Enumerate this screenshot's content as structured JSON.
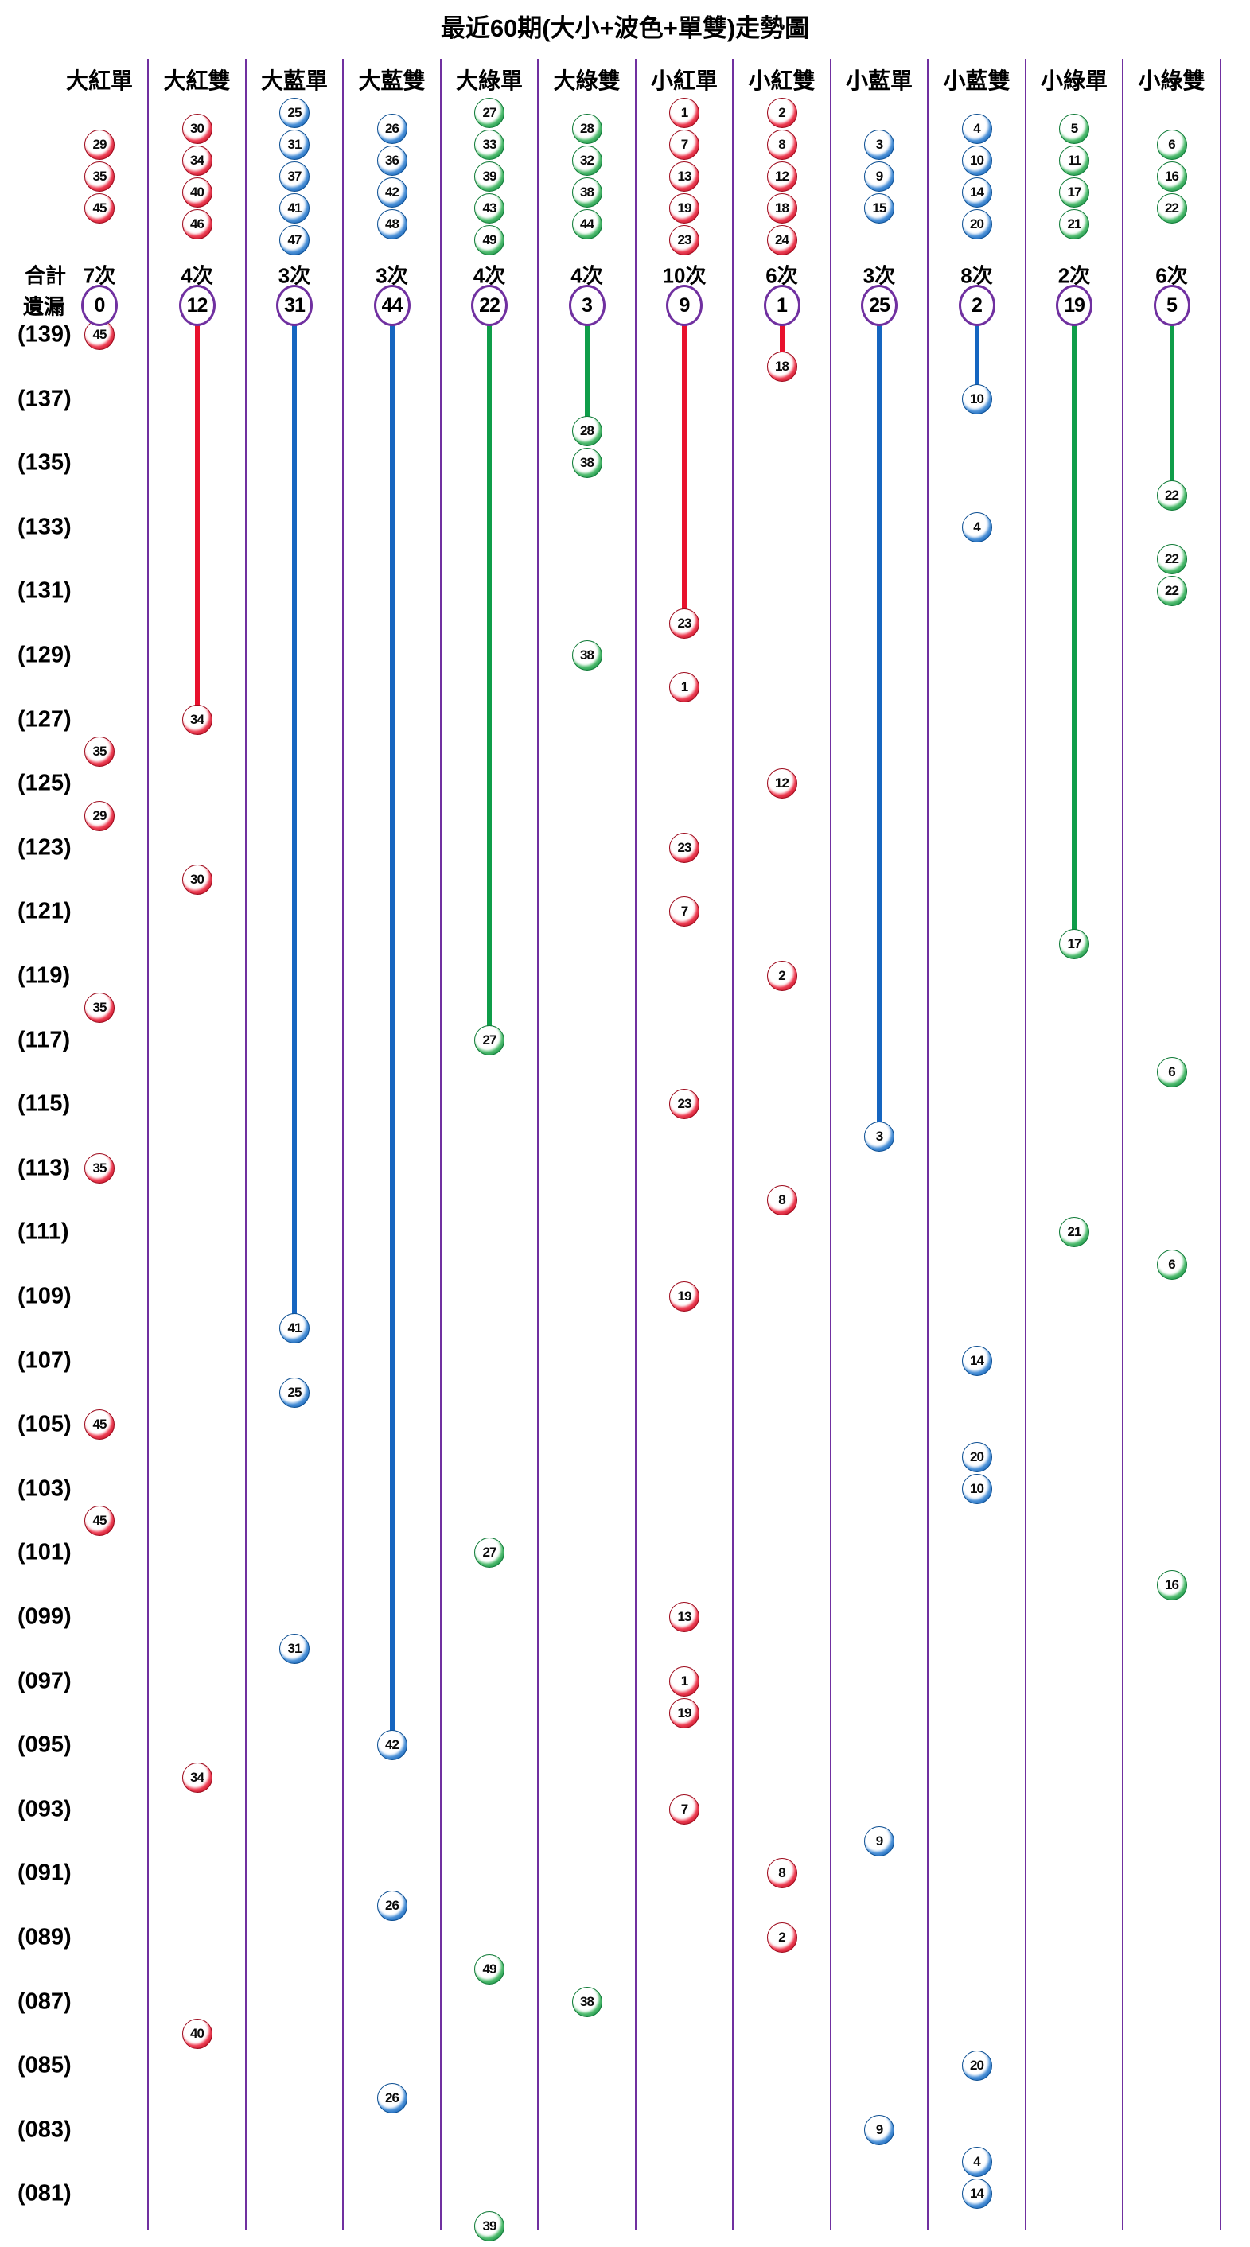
{
  "title": "最近60期(大小+波色+單雙)走勢圖",
  "legend": {
    "total_label": "合計",
    "miss_label": "遺漏"
  },
  "colors": {
    "red": "#e8112d",
    "blue": "#1565c0",
    "green": "#0f9d49",
    "purple": "#7030a0"
  },
  "period_labels": [
    "(139)",
    "(137)",
    "(135)",
    "(133)",
    "(131)",
    "(129)",
    "(127)",
    "(125)",
    "(123)",
    "(121)",
    "(119)",
    "(117)",
    "(115)",
    "(113)",
    "(111)",
    "(109)",
    "(107)",
    "(105)",
    "(103)",
    "(101)",
    "(099)",
    "(097)",
    "(095)",
    "(093)",
    "(091)",
    "(089)",
    "(087)",
    "(085)",
    "(083)",
    "(081)"
  ],
  "columns": [
    {
      "label": "大紅單",
      "group": "red",
      "top_balls": [
        29,
        35,
        45
      ],
      "total": "7次",
      "miss": 0,
      "events": [
        [
          139,
          45
        ],
        [
          126,
          35
        ],
        [
          124,
          29
        ],
        [
          118,
          35
        ],
        [
          113,
          35
        ],
        [
          105,
          45
        ],
        [
          102,
          45
        ]
      ]
    },
    {
      "label": "大紅雙",
      "group": "red",
      "top_balls": [
        30,
        34,
        40,
        46
      ],
      "total": "4次",
      "miss": 12,
      "events": [
        [
          127,
          34
        ],
        [
          122,
          30
        ],
        [
          94,
          34
        ],
        [
          86,
          40
        ]
      ]
    },
    {
      "label": "大藍單",
      "group": "blue",
      "top_balls": [
        25,
        31,
        37,
        41,
        47
      ],
      "total": "3次",
      "miss": 31,
      "events": [
        [
          108,
          41
        ],
        [
          106,
          25
        ],
        [
          98,
          31
        ]
      ]
    },
    {
      "label": "大藍雙",
      "group": "blue",
      "top_balls": [
        26,
        36,
        42,
        48
      ],
      "total": "3次",
      "miss": 44,
      "events": [
        [
          95,
          42
        ],
        [
          90,
          26
        ],
        [
          84,
          26
        ]
      ]
    },
    {
      "label": "大綠單",
      "group": "green",
      "top_balls": [
        27,
        33,
        39,
        43,
        49
      ],
      "total": "4次",
      "miss": 22,
      "events": [
        [
          117,
          27
        ],
        [
          101,
          27
        ],
        [
          88,
          49
        ],
        [
          80,
          39
        ]
      ]
    },
    {
      "label": "大綠雙",
      "group": "green",
      "top_balls": [
        28,
        32,
        38,
        44
      ],
      "total": "4次",
      "miss": 3,
      "events": [
        [
          136,
          28
        ],
        [
          135,
          38
        ],
        [
          129,
          38
        ],
        [
          87,
          38
        ]
      ]
    },
    {
      "label": "小紅單",
      "group": "red",
      "top_balls": [
        1,
        7,
        13,
        19,
        23
      ],
      "total": "10次",
      "miss": 9,
      "events": [
        [
          130,
          23
        ],
        [
          128,
          1
        ],
        [
          123,
          23
        ],
        [
          121,
          7
        ],
        [
          115,
          23
        ],
        [
          109,
          19
        ],
        [
          99,
          13
        ],
        [
          97,
          1
        ],
        [
          96,
          19
        ],
        [
          93,
          7
        ]
      ]
    },
    {
      "label": "小紅雙",
      "group": "red",
      "top_balls": [
        2,
        8,
        12,
        18,
        24
      ],
      "total": "6次",
      "miss": 1,
      "events": [
        [
          138,
          18
        ],
        [
          125,
          12
        ],
        [
          119,
          2
        ],
        [
          112,
          8
        ],
        [
          91,
          8
        ],
        [
          89,
          2
        ]
      ]
    },
    {
      "label": "小藍單",
      "group": "blue",
      "top_balls": [
        3,
        9,
        15
      ],
      "total": "3次",
      "miss": 25,
      "events": [
        [
          114,
          3
        ],
        [
          92,
          9
        ],
        [
          83,
          9
        ]
      ]
    },
    {
      "label": "小藍雙",
      "group": "blue",
      "top_balls": [
        4,
        10,
        14,
        20
      ],
      "total": "8次",
      "miss": 2,
      "events": [
        [
          137,
          10
        ],
        [
          133,
          4
        ],
        [
          107,
          14
        ],
        [
          104,
          20
        ],
        [
          103,
          10
        ],
        [
          85,
          20
        ],
        [
          82,
          4
        ],
        [
          81,
          14
        ]
      ]
    },
    {
      "label": "小綠單",
      "group": "green",
      "top_balls": [
        5,
        11,
        17,
        21
      ],
      "total": "2次",
      "miss": 19,
      "events": [
        [
          120,
          17
        ],
        [
          111,
          21
        ]
      ]
    },
    {
      "label": "小綠雙",
      "group": "green",
      "top_balls": [
        6,
        16,
        22
      ],
      "total": "6次",
      "miss": 5,
      "events": [
        [
          134,
          22
        ],
        [
          132,
          22
        ],
        [
          131,
          22
        ],
        [
          116,
          6
        ],
        [
          110,
          6
        ],
        [
          100,
          16
        ]
      ]
    }
  ],
  "chart_data": {
    "type": "scatter",
    "title": "最近60期(大小+波色+單雙)走勢圖",
    "x_categories": [
      "大紅單",
      "大紅雙",
      "大藍單",
      "大藍雙",
      "大綠單",
      "大綠雙",
      "小紅單",
      "小紅雙",
      "小藍單",
      "小藍雙",
      "小綠單",
      "小綠雙"
    ],
    "y_axis": "期號 (period), 139 at top descending to 80 at bottom, labels every 2 periods",
    "y_tick_labels": [
      "(139)",
      "(137)",
      "(135)",
      "(133)",
      "(131)",
      "(129)",
      "(127)",
      "(125)",
      "(123)",
      "(121)",
      "(119)",
      "(117)",
      "(115)",
      "(113)",
      "(111)",
      "(109)",
      "(107)",
      "(105)",
      "(103)",
      "(101)",
      "(099)",
      "(097)",
      "(095)",
      "(093)",
      "(091)",
      "(089)",
      "(087)",
      "(085)",
      "(083)",
      "(081)"
    ],
    "totals_per_category": [
      7,
      4,
      3,
      3,
      4,
      4,
      10,
      6,
      3,
      8,
      2,
      6
    ],
    "miss_per_category": [
      0,
      12,
      31,
      44,
      22,
      3,
      9,
      1,
      25,
      2,
      19,
      5
    ],
    "category_number_pools": [
      [
        29,
        35,
        45
      ],
      [
        30,
        34,
        40,
        46
      ],
      [
        25,
        31,
        37,
        41,
        47
      ],
      [
        26,
        36,
        42,
        48
      ],
      [
        27,
        33,
        39,
        43,
        49
      ],
      [
        28,
        32,
        38,
        44
      ],
      [
        1,
        7,
        13,
        19,
        23
      ],
      [
        2,
        8,
        12,
        18,
        24
      ],
      [
        3,
        9,
        15
      ],
      [
        4,
        10,
        14,
        20
      ],
      [
        5,
        11,
        17,
        21
      ],
      [
        6,
        16,
        22
      ]
    ],
    "series": [
      {
        "name": "大紅單",
        "color": "red",
        "points": [
          [
            139,
            45
          ],
          [
            126,
            35
          ],
          [
            124,
            29
          ],
          [
            118,
            35
          ],
          [
            113,
            35
          ],
          [
            105,
            45
          ],
          [
            102,
            45
          ]
        ]
      },
      {
        "name": "大紅雙",
        "color": "red",
        "points": [
          [
            127,
            34
          ],
          [
            122,
            30
          ],
          [
            94,
            34
          ],
          [
            86,
            40
          ]
        ]
      },
      {
        "name": "大藍單",
        "color": "blue",
        "points": [
          [
            108,
            41
          ],
          [
            106,
            25
          ],
          [
            98,
            31
          ]
        ]
      },
      {
        "name": "大藍雙",
        "color": "blue",
        "points": [
          [
            95,
            42
          ],
          [
            90,
            26
          ],
          [
            84,
            26
          ]
        ]
      },
      {
        "name": "大綠單",
        "color": "green",
        "points": [
          [
            117,
            27
          ],
          [
            101,
            27
          ],
          [
            88,
            49
          ],
          [
            80,
            39
          ]
        ]
      },
      {
        "name": "大綠雙",
        "color": "green",
        "points": [
          [
            136,
            28
          ],
          [
            135,
            38
          ],
          [
            129,
            38
          ],
          [
            87,
            38
          ]
        ]
      },
      {
        "name": "小紅單",
        "color": "red",
        "points": [
          [
            130,
            23
          ],
          [
            128,
            1
          ],
          [
            123,
            23
          ],
          [
            121,
            7
          ],
          [
            115,
            23
          ],
          [
            109,
            19
          ],
          [
            99,
            13
          ],
          [
            97,
            1
          ],
          [
            96,
            19
          ],
          [
            93,
            7
          ]
        ]
      },
      {
        "name": "小紅雙",
        "color": "red",
        "points": [
          [
            138,
            18
          ],
          [
            125,
            12
          ],
          [
            119,
            2
          ],
          [
            112,
            8
          ],
          [
            91,
            8
          ],
          [
            89,
            2
          ]
        ]
      },
      {
        "name": "小藍單",
        "color": "blue",
        "points": [
          [
            114,
            3
          ],
          [
            92,
            9
          ],
          [
            83,
            9
          ]
        ]
      },
      {
        "name": "小藍雙",
        "color": "blue",
        "points": [
          [
            137,
            10
          ],
          [
            133,
            4
          ],
          [
            107,
            14
          ],
          [
            104,
            20
          ],
          [
            103,
            10
          ],
          [
            85,
            20
          ],
          [
            82,
            4
          ],
          [
            81,
            14
          ]
        ]
      },
      {
        "name": "小綠單",
        "color": "green",
        "points": [
          [
            120,
            17
          ],
          [
            111,
            21
          ]
        ]
      },
      {
        "name": "小綠雙",
        "color": "green",
        "points": [
          [
            134,
            22
          ],
          [
            132,
            22
          ],
          [
            131,
            22
          ],
          [
            116,
            6
          ],
          [
            110,
            6
          ],
          [
            100,
            16
          ]
        ]
      }
    ],
    "annotations": "Vertical colored line in each column runs from the 遺漏 circle down to that column's most recent ball (period = 139 - 遺漏)."
  }
}
